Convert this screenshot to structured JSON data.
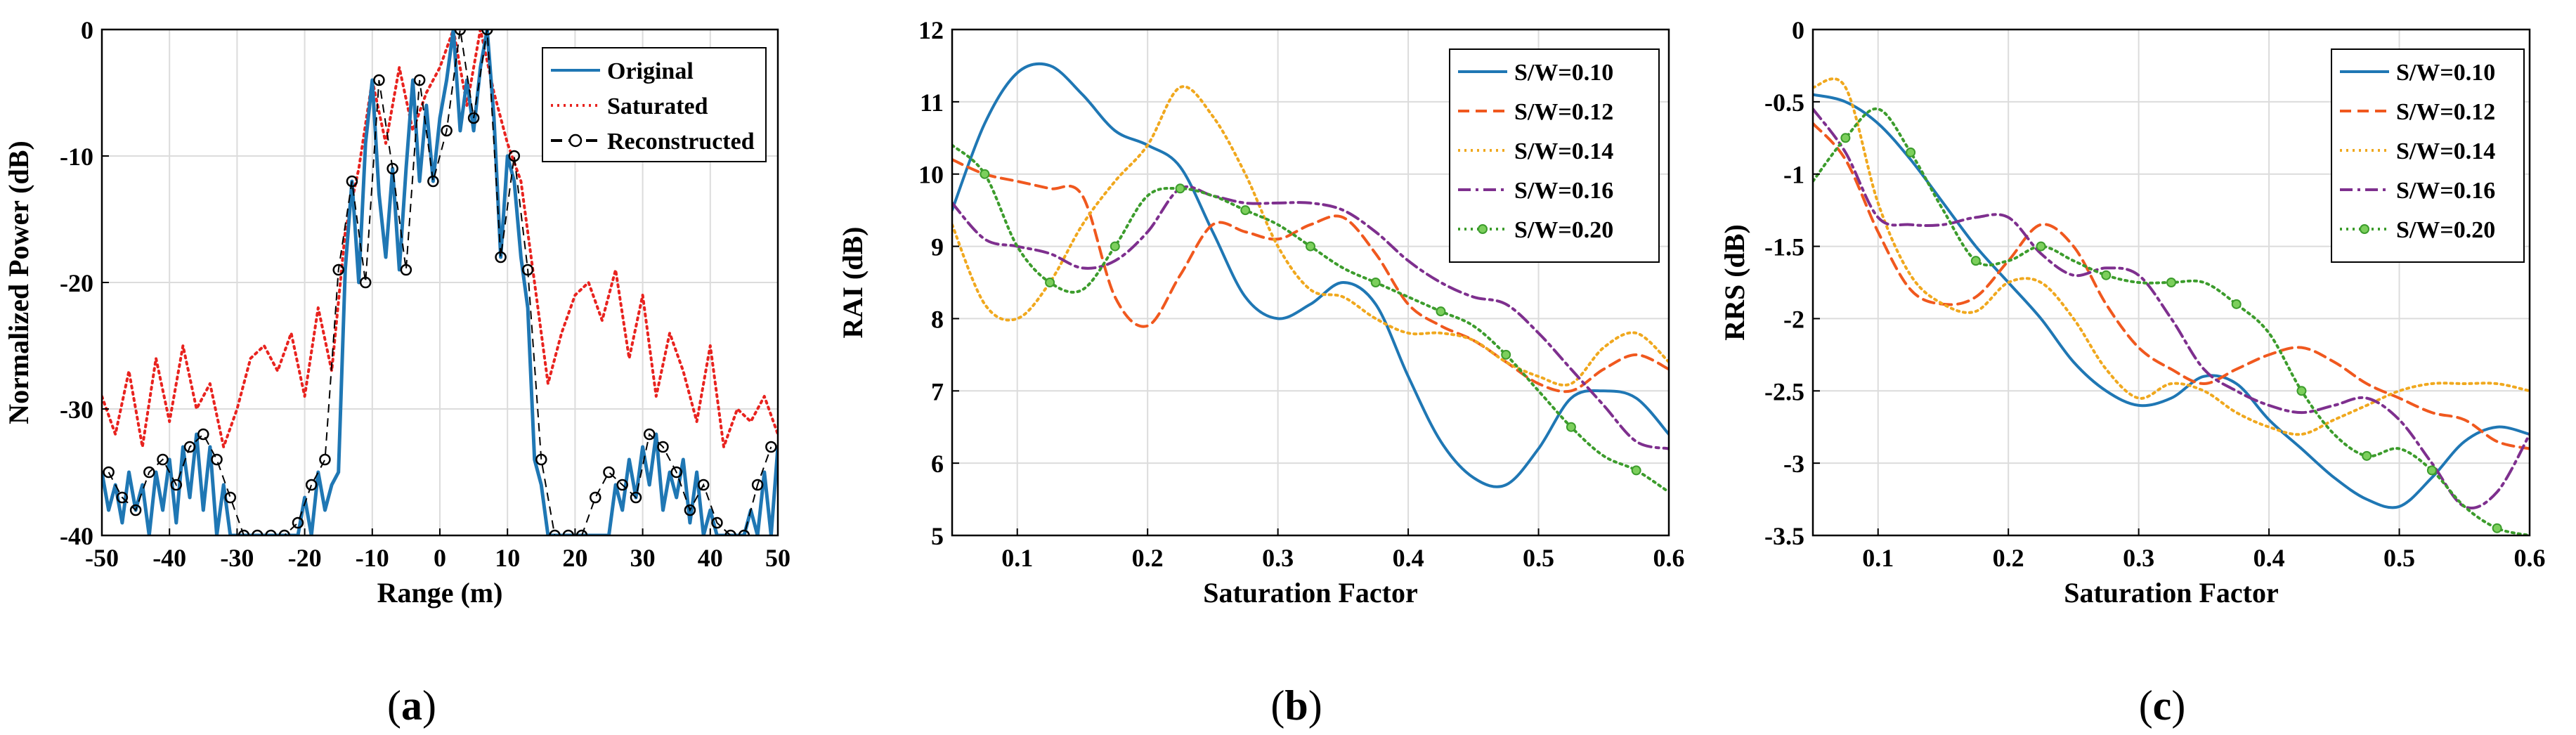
{
  "chart_data": [
    {
      "id": "a",
      "type": "line",
      "caption_letter": "a",
      "xlabel": "Range (m)",
      "ylabel": "Normalized Power (dB)",
      "xlim": [
        -50,
        50
      ],
      "ylim": [
        -40,
        0
      ],
      "xticks": [
        -50,
        -40,
        -30,
        -20,
        -10,
        0,
        10,
        20,
        30,
        40,
        50
      ],
      "yticks": [
        -40,
        -30,
        -20,
        -10,
        0
      ],
      "legend": [
        "Original",
        "Saturated",
        "Reconstructed"
      ],
      "legend_position": "top-right",
      "peaks": [
        {
          "x": -15,
          "y": -19
        },
        {
          "x": -13,
          "y": -12
        },
        {
          "x": -9,
          "y": -4
        },
        {
          "x": -5,
          "y": -11
        },
        {
          "x": -3,
          "y": -4
        },
        {
          "x": 0,
          "y": -7
        },
        {
          "x": 2,
          "y": 0
        },
        {
          "x": 5,
          "y": -8
        },
        {
          "x": 7,
          "y": 0
        },
        {
          "x": 9,
          "y": -18
        },
        {
          "x": 11,
          "y": -10
        },
        {
          "x": 13,
          "y": -19
        }
      ],
      "series": [
        {
          "name": "Saturated",
          "x": [
            -50,
            -48,
            -46,
            -44,
            -42,
            -40,
            -38,
            -36,
            -34,
            -32,
            -30,
            -28,
            -26,
            -24,
            -22,
            -20,
            -18,
            -16,
            -14,
            -12,
            -10,
            -8,
            -6,
            -4,
            -2,
            0,
            2,
            4,
            6,
            8,
            10,
            12,
            14,
            16,
            18,
            20,
            22,
            24,
            26,
            28,
            30,
            32,
            34,
            36,
            38,
            40,
            42,
            44,
            46,
            48,
            50
          ],
          "y": [
            -29,
            -32,
            -27,
            -33,
            -26,
            -31,
            -25,
            -30,
            -28,
            -33,
            -30,
            -26,
            -25,
            -27,
            -24,
            -29,
            -22,
            -27,
            -16,
            -11,
            -4,
            -9,
            -3,
            -8,
            -5,
            -3,
            0,
            -6,
            0,
            -5,
            -9,
            -12,
            -20,
            -28,
            -24,
            -21,
            -20,
            -23,
            -19,
            -26,
            -21,
            -29,
            -24,
            -27,
            -31,
            -25,
            -33,
            -30,
            -31,
            -29,
            -32
          ]
        },
        {
          "name": "Original",
          "x": [
            -50,
            -49,
            -48,
            -47,
            -46,
            -45,
            -44,
            -43,
            -42,
            -41,
            -40,
            -39,
            -38,
            -37,
            -36,
            -35,
            -34,
            -33,
            -32,
            -31,
            -30,
            -29,
            -28,
            -27,
            -26,
            -25,
            -24,
            -23,
            -22,
            -21,
            -20,
            -19,
            -18,
            -17,
            -16,
            -15,
            -14,
            -13,
            -12,
            -11,
            -10,
            -9,
            -8,
            -7,
            -6,
            -5,
            -4,
            -3,
            -2,
            -1,
            0,
            1,
            2,
            3,
            4,
            5,
            6,
            7,
            8,
            9,
            10,
            11,
            12,
            13,
            14,
            15,
            16,
            17,
            18,
            19,
            20,
            21,
            22,
            23,
            24,
            25,
            26,
            27,
            28,
            29,
            30,
            31,
            32,
            33,
            34,
            35,
            36,
            37,
            38,
            39,
            40,
            41,
            42,
            43,
            44,
            45,
            46,
            47,
            48,
            49,
            50
          ],
          "y": [
            -35,
            -38,
            -36,
            -39,
            -35,
            -38,
            -36,
            -40,
            -35,
            -38,
            -34,
            -39,
            -33,
            -37,
            -32,
            -38,
            -33,
            -40,
            -36,
            -40,
            -40,
            -40,
            -40,
            -40,
            -40,
            -40,
            -40,
            -40,
            -40,
            -40,
            -37,
            -40,
            -35,
            -38,
            -36,
            -35,
            -19,
            -12,
            -20,
            -9,
            -4,
            -13,
            -18,
            -11,
            -19,
            -11,
            -4,
            -12,
            -6,
            -12,
            -7,
            -4,
            0,
            -8,
            -4,
            -8,
            -3,
            0,
            -7,
            -18,
            -10,
            -12,
            -18,
            -22,
            -34,
            -36,
            -40,
            -40,
            -40,
            -40,
            -40,
            -40,
            -40,
            -40,
            -40,
            -40,
            -36,
            -38,
            -34,
            -37,
            -33,
            -36,
            -32,
            -38,
            -35,
            -37,
            -34,
            -39,
            -35,
            -40,
            -38,
            -40,
            -40,
            -40,
            -40,
            -40,
            -38,
            -40,
            -35,
            -40,
            -33
          ]
        },
        {
          "name": "Reconstructed",
          "markers_x": [
            -49,
            -47,
            -45,
            -43,
            -41,
            -39,
            -37,
            -35,
            -33,
            -31,
            -29,
            -27,
            -25,
            -23,
            -21,
            -19,
            -17,
            -15,
            -13,
            -11,
            -9,
            -7,
            -5,
            -3,
            -1,
            1,
            3,
            5,
            7,
            9,
            11,
            13,
            15,
            17,
            19,
            21,
            23,
            25,
            27,
            29,
            31,
            33,
            35,
            37,
            39,
            41,
            43,
            45,
            47,
            49
          ],
          "markers_y": [
            -35,
            -37,
            -38,
            -35,
            -34,
            -36,
            -33,
            -32,
            -34,
            -37,
            -40,
            -40,
            -40,
            -40,
            -39,
            -36,
            -34,
            -19,
            -12,
            -20,
            -4,
            -11,
            -19,
            -4,
            -12,
            -8,
            0,
            -7,
            0,
            -18,
            -10,
            -19,
            -34,
            -40,
            -40,
            -40,
            -37,
            -35,
            -36,
            -37,
            -32,
            -33,
            -35,
            -38,
            -36,
            -39,
            -40,
            -40,
            -36,
            -33
          ]
        }
      ]
    },
    {
      "id": "b",
      "type": "line",
      "caption_letter": "b",
      "xlabel": "Saturation Factor",
      "ylabel": "RAI (dB)",
      "xlim": [
        0.05,
        0.6
      ],
      "ylim": [
        5,
        12
      ],
      "xticks": [
        0.1,
        0.2,
        0.3,
        0.4,
        0.5,
        0.6
      ],
      "yticks": [
        5,
        6,
        7,
        8,
        9,
        10,
        11,
        12
      ],
      "legend_position": "top-right",
      "series": [
        {
          "name": "S/W=0.10",
          "x": [
            0.05,
            0.075,
            0.1,
            0.125,
            0.15,
            0.175,
            0.2,
            0.225,
            0.25,
            0.275,
            0.3,
            0.325,
            0.35,
            0.375,
            0.4,
            0.425,
            0.45,
            0.475,
            0.5,
            0.525,
            0.55,
            0.575,
            0.6
          ],
          "y": [
            9.5,
            10.7,
            11.4,
            11.5,
            11.1,
            10.6,
            10.4,
            10.1,
            9.2,
            8.3,
            8.0,
            8.2,
            8.5,
            8.2,
            7.2,
            6.3,
            5.8,
            5.7,
            6.2,
            6.9,
            7.0,
            6.9,
            6.4
          ]
        },
        {
          "name": "S/W=0.12",
          "x": [
            0.05,
            0.075,
            0.1,
            0.125,
            0.15,
            0.175,
            0.2,
            0.225,
            0.25,
            0.275,
            0.3,
            0.325,
            0.35,
            0.375,
            0.4,
            0.425,
            0.45,
            0.475,
            0.5,
            0.525,
            0.55,
            0.575,
            0.6
          ],
          "y": [
            10.2,
            10.0,
            9.9,
            9.8,
            9.7,
            8.3,
            7.9,
            8.6,
            9.3,
            9.2,
            9.1,
            9.3,
            9.4,
            8.9,
            8.2,
            7.9,
            7.7,
            7.4,
            7.1,
            7.0,
            7.3,
            7.5,
            7.3
          ]
        },
        {
          "name": "S/W=0.14",
          "x": [
            0.05,
            0.075,
            0.1,
            0.125,
            0.15,
            0.175,
            0.2,
            0.225,
            0.25,
            0.275,
            0.3,
            0.325,
            0.35,
            0.375,
            0.4,
            0.425,
            0.45,
            0.475,
            0.5,
            0.525,
            0.55,
            0.575,
            0.6
          ],
          "y": [
            9.3,
            8.2,
            8.0,
            8.5,
            9.3,
            9.9,
            10.4,
            11.2,
            10.8,
            10.0,
            9.0,
            8.4,
            8.3,
            8.0,
            7.8,
            7.8,
            7.7,
            7.4,
            7.2,
            7.1,
            7.6,
            7.8,
            7.4
          ]
        },
        {
          "name": "S/W=0.16",
          "x": [
            0.05,
            0.075,
            0.1,
            0.125,
            0.15,
            0.175,
            0.2,
            0.225,
            0.25,
            0.275,
            0.3,
            0.325,
            0.35,
            0.375,
            0.4,
            0.425,
            0.45,
            0.475,
            0.5,
            0.525,
            0.55,
            0.575,
            0.6
          ],
          "y": [
            9.6,
            9.1,
            9.0,
            8.9,
            8.7,
            8.8,
            9.2,
            9.8,
            9.7,
            9.6,
            9.6,
            9.6,
            9.5,
            9.2,
            8.8,
            8.5,
            8.3,
            8.2,
            7.8,
            7.3,
            6.8,
            6.3,
            6.2
          ]
        },
        {
          "name": "S/W=0.20",
          "x": [
            0.05,
            0.075,
            0.1,
            0.125,
            0.15,
            0.175,
            0.2,
            0.225,
            0.25,
            0.275,
            0.3,
            0.325,
            0.35,
            0.375,
            0.4,
            0.425,
            0.45,
            0.475,
            0.5,
            0.525,
            0.55,
            0.575,
            0.6
          ],
          "y": [
            10.4,
            10.0,
            9.0,
            8.5,
            8.4,
            9.0,
            9.7,
            9.8,
            9.7,
            9.5,
            9.3,
            9.0,
            8.7,
            8.5,
            8.3,
            8.1,
            7.9,
            7.5,
            7.0,
            6.5,
            6.1,
            5.9,
            5.6
          ]
        }
      ]
    },
    {
      "id": "c",
      "type": "line",
      "caption_letter": "c",
      "xlabel": "Saturation Factor",
      "ylabel": "RRS (dB)",
      "xlim": [
        0.05,
        0.6
      ],
      "ylim": [
        -3.5,
        0
      ],
      "xticks": [
        0.1,
        0.2,
        0.3,
        0.4,
        0.5,
        0.6
      ],
      "yticks": [
        -3.5,
        -3,
        -2.5,
        -2,
        -1.5,
        -1,
        -0.5,
        0
      ],
      "legend_position": "top-right",
      "series": [
        {
          "name": "S/W=0.10",
          "x": [
            0.05,
            0.075,
            0.1,
            0.125,
            0.15,
            0.175,
            0.2,
            0.225,
            0.25,
            0.275,
            0.3,
            0.325,
            0.35,
            0.375,
            0.4,
            0.425,
            0.45,
            0.475,
            0.5,
            0.525,
            0.55,
            0.575,
            0.6
          ],
          "y": [
            -0.45,
            -0.5,
            -0.65,
            -0.9,
            -1.2,
            -1.5,
            -1.75,
            -2.0,
            -2.3,
            -2.5,
            -2.6,
            -2.55,
            -2.4,
            -2.45,
            -2.7,
            -2.9,
            -3.1,
            -3.25,
            -3.3,
            -3.1,
            -2.85,
            -2.75,
            -2.8
          ]
        },
        {
          "name": "S/W=0.12",
          "x": [
            0.05,
            0.075,
            0.1,
            0.125,
            0.15,
            0.175,
            0.2,
            0.225,
            0.25,
            0.275,
            0.3,
            0.325,
            0.35,
            0.375,
            0.4,
            0.425,
            0.45,
            0.475,
            0.5,
            0.525,
            0.55,
            0.575,
            0.6
          ],
          "y": [
            -0.65,
            -0.9,
            -1.4,
            -1.8,
            -1.9,
            -1.85,
            -1.6,
            -1.35,
            -1.5,
            -1.9,
            -2.2,
            -2.35,
            -2.45,
            -2.35,
            -2.25,
            -2.2,
            -2.3,
            -2.45,
            -2.55,
            -2.65,
            -2.7,
            -2.85,
            -2.9
          ]
        },
        {
          "name": "S/W=0.14",
          "x": [
            0.05,
            0.075,
            0.1,
            0.125,
            0.15,
            0.175,
            0.2,
            0.225,
            0.25,
            0.275,
            0.3,
            0.325,
            0.35,
            0.375,
            0.4,
            0.425,
            0.45,
            0.475,
            0.5,
            0.525,
            0.55,
            0.575,
            0.6
          ],
          "y": [
            -0.4,
            -0.4,
            -1.2,
            -1.7,
            -1.9,
            -1.95,
            -1.75,
            -1.75,
            -2.0,
            -2.35,
            -2.55,
            -2.45,
            -2.5,
            -2.65,
            -2.75,
            -2.8,
            -2.7,
            -2.6,
            -2.5,
            -2.45,
            -2.45,
            -2.45,
            -2.5
          ]
        },
        {
          "name": "S/W=0.16",
          "x": [
            0.05,
            0.075,
            0.1,
            0.125,
            0.15,
            0.175,
            0.2,
            0.225,
            0.25,
            0.275,
            0.3,
            0.325,
            0.35,
            0.375,
            0.4,
            0.425,
            0.45,
            0.475,
            0.5,
            0.525,
            0.55,
            0.575,
            0.6
          ],
          "y": [
            -0.55,
            -0.85,
            -1.3,
            -1.35,
            -1.35,
            -1.3,
            -1.3,
            -1.55,
            -1.7,
            -1.65,
            -1.7,
            -2.0,
            -2.35,
            -2.5,
            -2.6,
            -2.65,
            -2.6,
            -2.55,
            -2.7,
            -3.0,
            -3.3,
            -3.2,
            -2.8
          ]
        },
        {
          "name": "S/W=0.20",
          "x": [
            0.05,
            0.075,
            0.1,
            0.125,
            0.15,
            0.175,
            0.2,
            0.225,
            0.25,
            0.275,
            0.3,
            0.325,
            0.35,
            0.375,
            0.4,
            0.425,
            0.45,
            0.475,
            0.5,
            0.525,
            0.55,
            0.575,
            0.6
          ],
          "y": [
            -1.05,
            -0.75,
            -0.55,
            -0.85,
            -1.25,
            -1.6,
            -1.6,
            -1.5,
            -1.6,
            -1.7,
            -1.75,
            -1.75,
            -1.75,
            -1.9,
            -2.1,
            -2.5,
            -2.8,
            -2.95,
            -2.9,
            -3.05,
            -3.3,
            -3.45,
            -3.5
          ]
        }
      ]
    }
  ],
  "series_styles": {
    "Original": {
      "color": "#1f77b4",
      "dash": "solid"
    },
    "Saturated": {
      "color": "#e8231f",
      "dash": "dotted"
    },
    "Reconstructed": {
      "color": "#000000",
      "dash": "dash-circle"
    },
    "S/W=0.10": {
      "color": "#1f77b4",
      "dash": "solid"
    },
    "S/W=0.12": {
      "color": "#f0581e",
      "dash": "dashed"
    },
    "S/W=0.14": {
      "color": "#f0a81e",
      "dash": "dotted"
    },
    "S/W=0.16": {
      "color": "#7e2f8e",
      "dash": "dash-dot"
    },
    "S/W=0.20": {
      "color": "#3c9c2c",
      "dash": "dotted-circle"
    }
  }
}
